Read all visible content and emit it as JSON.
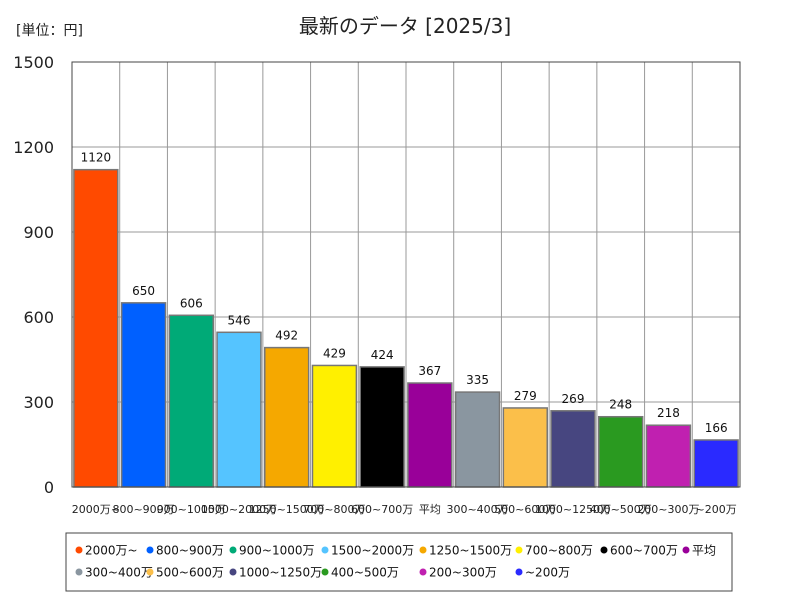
{
  "chart_data": {
    "type": "bar",
    "title": "最新のデータ [2025/3]",
    "unit_label": "[単位：円]",
    "ylim": [
      0,
      1500
    ],
    "yticks": [
      0,
      300,
      600,
      900,
      1200,
      1500
    ],
    "grid": true,
    "legend_position": "bottom",
    "categories": [
      "2000万~",
      "800~900万",
      "900~1000万",
      "1500~2000万",
      "1250~1500万",
      "700~800万",
      "600~700万",
      "平均",
      "300~400万",
      "500~600万",
      "1000~1250万",
      "400~500万",
      "200~300万",
      "~200万"
    ],
    "values": [
      1120,
      650,
      606,
      546,
      492,
      429,
      424,
      367,
      335,
      279,
      269,
      248,
      218,
      166
    ],
    "colors": [
      "#ff4a00",
      "#0060ff",
      "#00aa77",
      "#55c4ff",
      "#f5a800",
      "#fff000",
      "#000000",
      "#990099",
      "#8a96a0",
      "#fbbf4a",
      "#474680",
      "#2a9a20",
      "#c020b0",
      "#2a2aff"
    ],
    "legend": [
      "2000万~",
      "800~900万",
      "900~1000万",
      "1500~2000万",
      "1250~1500万",
      "700~800万",
      "600~700万",
      "平均",
      "300~400万",
      "500~600万",
      "1000~1250万",
      "400~500万",
      "200~300万",
      "~200万"
    ]
  }
}
